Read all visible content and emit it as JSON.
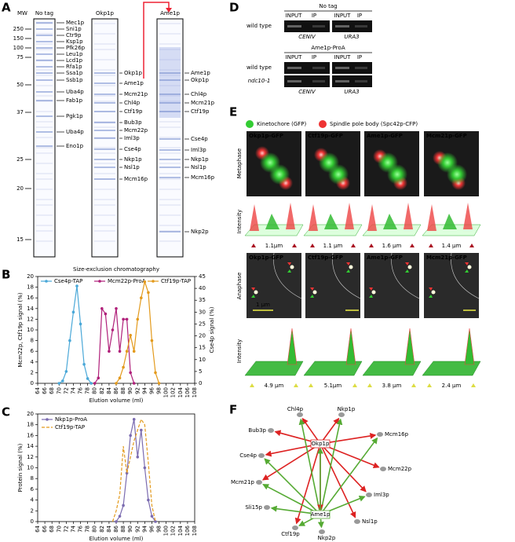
{
  "panel_labels": [
    "A",
    "B",
    "C",
    "D",
    "E",
    "F"
  ],
  "panel_a": {
    "mw_header": "MW",
    "lanes": [
      "No tag",
      "Okp1p",
      "Ame1p"
    ],
    "markers": [
      250,
      150,
      100,
      75,
      50,
      37,
      25,
      20,
      15
    ],
    "no_tag_bands": [
      "Mec1p",
      "Sni1p",
      "Ctr9p",
      "Ksp1p",
      "Pfk26p",
      "Leu1p",
      "Lcd1p",
      "Rfa1p",
      "Ssa1p",
      "Ssb1p",
      "Uba4p",
      "Fab1p",
      "Pgk1p",
      "Uba4p",
      "Eno1p"
    ],
    "okp1p_bands": [
      "Okp1p",
      "Ame1p",
      "Mcm21p",
      "Chl4p",
      "Ctf19p",
      "Bub3p",
      "Mcm22p",
      "Iml3p",
      "Cse4p",
      "Nkp1p",
      "Nsl1p",
      "Mcm16p"
    ],
    "ame1p_bands": [
      "Ame1p",
      "Okp1p",
      "Chl4p",
      "Mcm21p",
      "Ctf19p",
      "Cse4p",
      "Iml3p",
      "Nkp1p",
      "Nsl1p",
      "Mcm16p",
      "Nkp2p"
    ]
  },
  "chart_data": [
    {
      "type": "line",
      "title": "Size-exclusion chromatography",
      "xlabel": "Elution volume (ml)",
      "ylabel": "Mcm22p, Ctf19p signal (%)",
      "y2label": "Cse4p signal (%)",
      "xlim": [
        64,
        108
      ],
      "xticks": [
        64,
        66,
        68,
        70,
        72,
        74,
        76,
        78,
        80,
        82,
        84,
        86,
        88,
        90,
        92,
        94,
        96,
        98,
        100,
        102,
        104,
        106,
        108
      ],
      "ylim": [
        0,
        20
      ],
      "yticks": [
        0,
        2,
        4,
        6,
        8,
        10,
        12,
        14,
        16,
        18,
        20
      ],
      "y2lim": [
        0,
        45
      ],
      "y2ticks": [
        0,
        5,
        10,
        15,
        20,
        25,
        30,
        35,
        40,
        45
      ],
      "legend": "top",
      "series": [
        {
          "name": "Cse4p-TAP",
          "color": "#4aa8d8",
          "axis": "y2",
          "marker": "circle",
          "x": [
            70,
            71,
            72,
            73,
            74,
            75,
            76,
            77,
            78,
            79
          ],
          "values": [
            0,
            1,
            5,
            18,
            30,
            41,
            25,
            8,
            2,
            0
          ]
        },
        {
          "name": "Mcm22p-ProA",
          "color": "#b0207a",
          "marker": "circle",
          "x": [
            80,
            81,
            82,
            83,
            84,
            85,
            86,
            87,
            88,
            89,
            90,
            91
          ],
          "values": [
            0,
            1,
            14,
            13,
            6,
            10,
            14,
            6,
            12,
            12,
            2,
            0
          ]
        },
        {
          "name": "Ctf19p-TAP",
          "color": "#e39a1c",
          "marker": "circle",
          "x": [
            86,
            87,
            88,
            89,
            90,
            91,
            92,
            93,
            94,
            95,
            96,
            97,
            98
          ],
          "values": [
            0,
            1,
            3,
            6,
            9,
            6,
            12,
            16,
            19,
            17,
            8,
            2,
            0
          ]
        }
      ]
    },
    {
      "type": "line",
      "xlabel": "Elution volume (ml)",
      "ylabel": "Protein signal (%)",
      "xlim": [
        64,
        108
      ],
      "xticks": [
        64,
        66,
        68,
        70,
        72,
        74,
        76,
        78,
        80,
        82,
        84,
        86,
        88,
        90,
        92,
        94,
        96,
        98,
        100,
        102,
        104,
        106,
        108
      ],
      "ylim": [
        0,
        20
      ],
      "yticks": [
        0,
        2,
        4,
        6,
        8,
        10,
        12,
        14,
        16,
        18,
        20
      ],
      "legend": "upper left",
      "series": [
        {
          "name": "Nkp1p-ProA",
          "color": "#7b6bb0",
          "marker": "circle",
          "x": [
            86,
            87,
            88,
            89,
            90,
            91,
            92,
            93,
            94,
            95,
            96,
            97
          ],
          "values": [
            0,
            1,
            3,
            9,
            16,
            19,
            12,
            17,
            10,
            4,
            1,
            0
          ]
        },
        {
          "name": "Ctf19p-TAP",
          "color": "#e39a1c",
          "line_style": "dashed",
          "x": [
            85,
            86,
            87,
            88,
            89,
            90,
            91,
            92,
            93,
            94,
            95,
            96,
            97
          ],
          "values": [
            0,
            2,
            5,
            14,
            9,
            12,
            15,
            17,
            19,
            18,
            11,
            3,
            0
          ]
        }
      ]
    }
  ],
  "panel_d": {
    "groups": [
      {
        "title": "No tag",
        "headers": [
          "INPUT",
          "IP",
          "INPUT",
          "IP"
        ],
        "rows": [
          "wild type"
        ],
        "loci": [
          "CENIV",
          "URA3"
        ]
      },
      {
        "title": "Ame1p-ProA",
        "headers": [
          "INPUT",
          "IP",
          "INPUT",
          "IP"
        ],
        "rows": [
          "wild type",
          "ndc10-1"
        ],
        "loci": [
          "CENIV",
          "URA3"
        ]
      }
    ]
  },
  "panel_e": {
    "legend": [
      "Kinetochore (GFP)",
      "Spindle pole body (Spc42p-CFP)"
    ],
    "row_labels": [
      "Metaphase",
      "Intensity",
      "Anaphase",
      "Intensity"
    ],
    "metaphase_strains": [
      "Okp1p-GFP",
      "Ctf19p-GFP",
      "Ame1p-GFP",
      "Mcm21p-GFP"
    ],
    "metaphase_distances": [
      "1.1µm",
      "1.1 µm",
      "1.6 µm",
      "1.4 µm"
    ],
    "anaphase_strains": [
      "Okp1p-GFP",
      "Ctf19p-GFP",
      "Ame1p-GFP",
      "Mcm21p-GFP"
    ],
    "anaphase_distances": [
      "4.9 µm",
      "5.1µm",
      "3.8 µm",
      "2.4 µm"
    ],
    "scale_bar": "1 µm"
  },
  "panel_f": {
    "center": [
      "Okp1p",
      "Ame1p"
    ],
    "nodes": [
      "Bub3p",
      "Chl4p",
      "Nkp1p",
      "Mcm16p",
      "Cse4p",
      "Mcm22p",
      "Mcm21p",
      "Iml3p",
      "Sli15p",
      "Nsl1p",
      "Ctf19p",
      "Nkp2p"
    ]
  }
}
